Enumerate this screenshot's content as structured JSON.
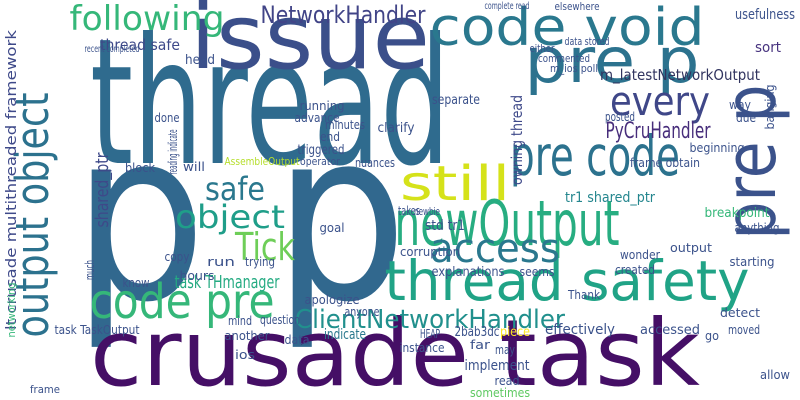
{
  "words": [
    "thread",
    "p p",
    "crusade task",
    "issue",
    "code void",
    "pre p",
    "pre p",
    "every",
    "pre code",
    "still",
    "newOutput",
    "thread safety",
    "access",
    "output object",
    "following",
    "NetworkHandler",
    "safe",
    "object",
    "Tick",
    "code pre",
    "ClientNetworkHandler",
    "PyCruHandler",
    "m_latestNetworkOutput",
    "task THmanager",
    "shared_ptr",
    "lt crusade multithreaded framework",
    "owning thread",
    "thread safe",
    "usefulness",
    "sort",
    "breakpoint",
    "anything",
    "starting",
    "moved",
    "allow",
    "go",
    "std tr1",
    "tr1 shared_ptr",
    "newbie",
    "indicate",
    "2bab3dc",
    "piece",
    "may",
    "far",
    "implement",
    "read",
    "sometimes",
    "effectively",
    "accessed",
    "detect",
    "Thank",
    "seems",
    "created",
    "wonder",
    "output",
    "explanations",
    "instance",
    "HEAP",
    "corruption",
    "takes",
    "frame obtain",
    "beginning",
    "posted",
    "clarify",
    "separate",
    "minutes",
    "triggered",
    "end",
    "advance",
    "running",
    "AssembleOutput",
    "operator",
    "nuances",
    "done",
    "block",
    "will",
    "hours",
    "copy",
    "run",
    "trying",
    "know",
    "goal",
    "apologize",
    "anyone",
    "question",
    "mind",
    "another",
    "data",
    "ios",
    "task TaskOutput",
    "frame",
    "head",
    "data stored",
    "either",
    "commented",
    "m_ios poll",
    "elsewhere",
    "complete read",
    "recent completed",
    "way",
    "due",
    "much",
    "reading indicate",
    "banging",
    "networking"
  ]
}
